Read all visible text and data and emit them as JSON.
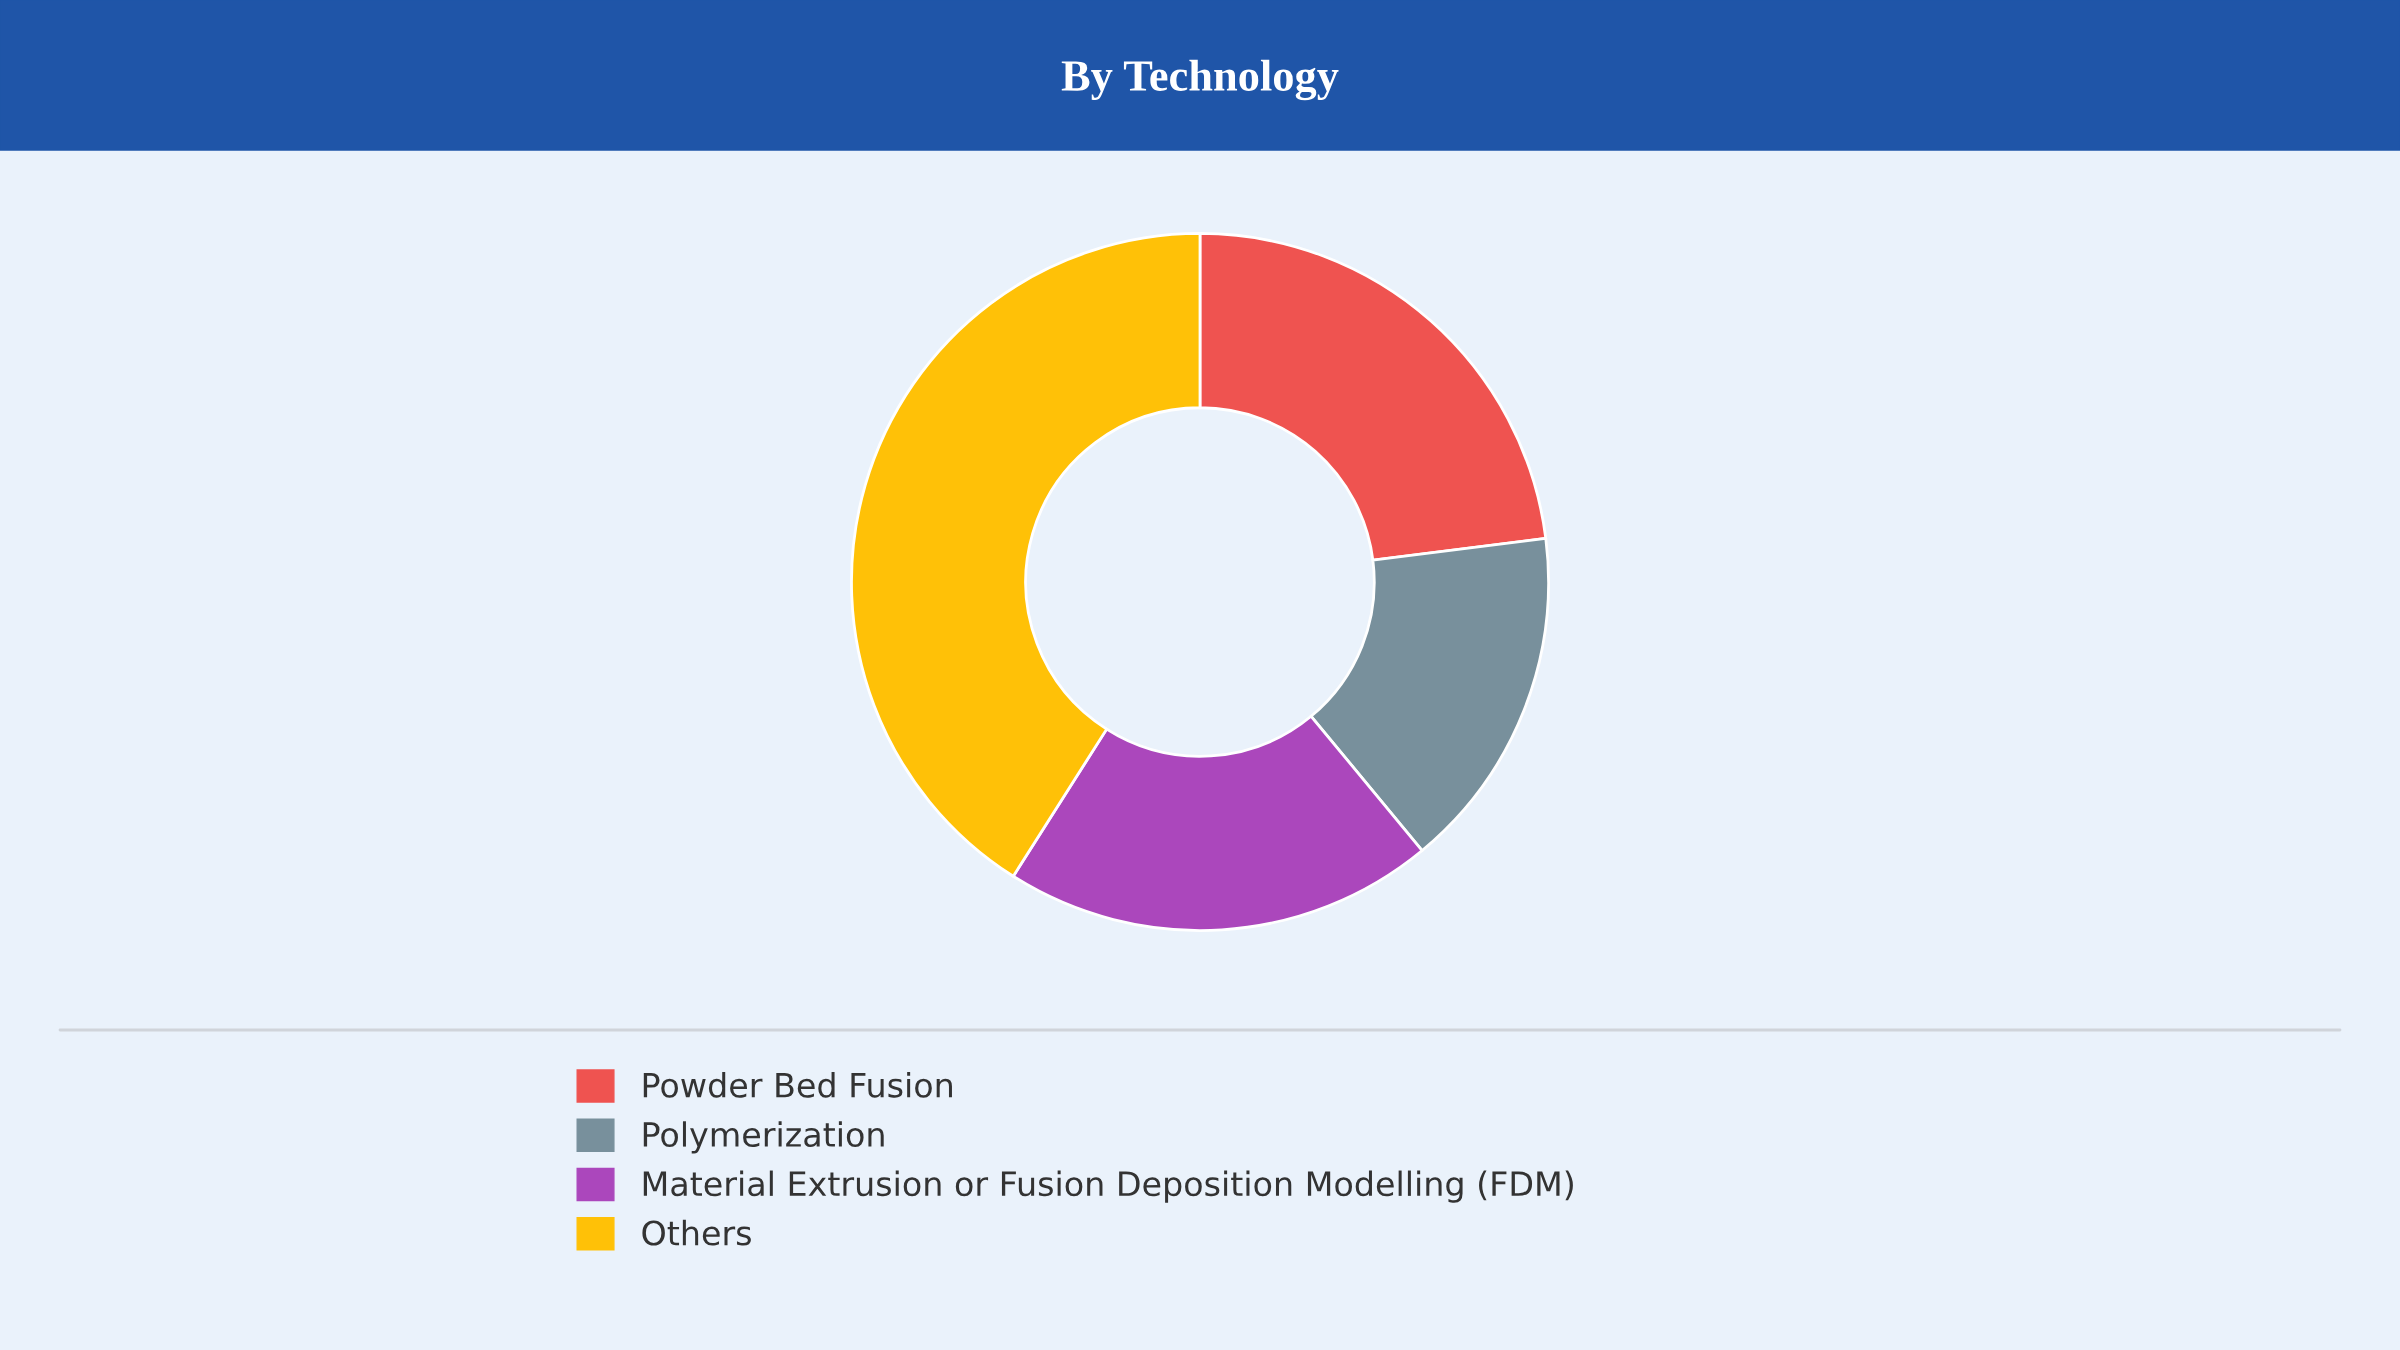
{
  "chart_data": {
    "type": "donut",
    "title": "By Technology",
    "categories": [
      "Powder Bed Fusion",
      "Polymerization",
      "Material Extrusion or Fusion Deposition Modelling (FDM)",
      "Others"
    ],
    "values": [
      23,
      16,
      20,
      41
    ],
    "colors": [
      "#ef5350",
      "#78909c",
      "#ab47bc",
      "#ffc107"
    ],
    "legend": "bottom"
  }
}
